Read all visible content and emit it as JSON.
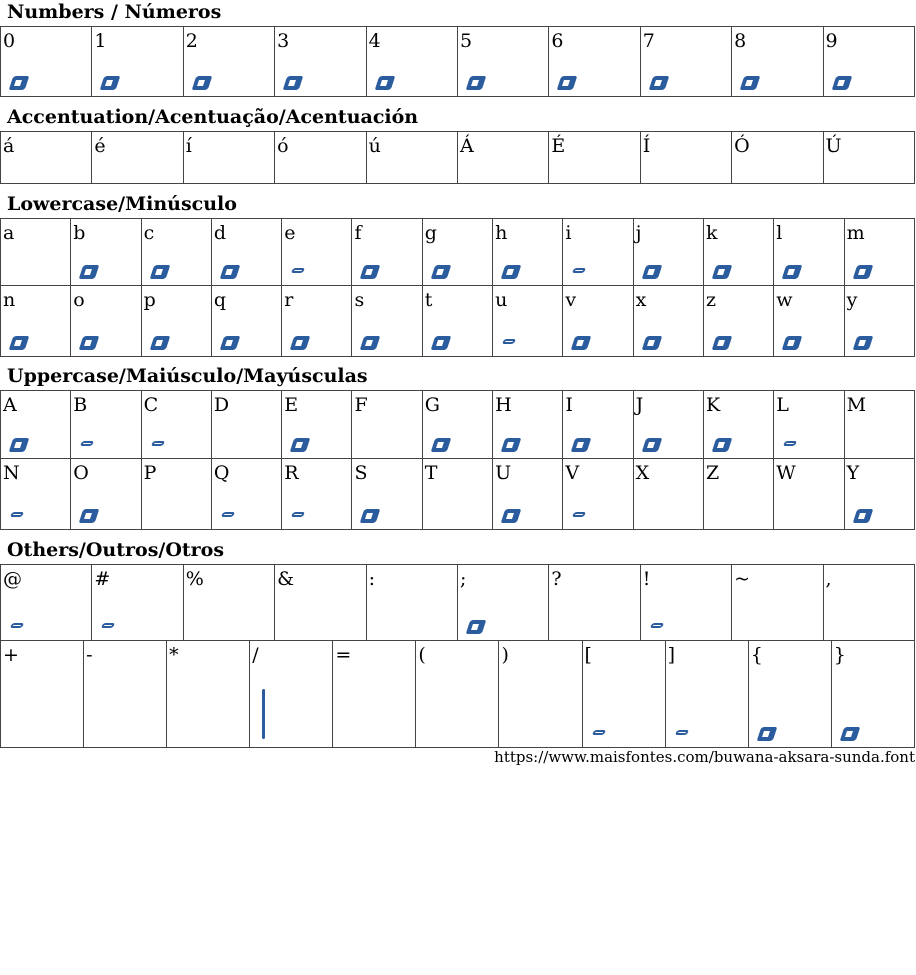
{
  "accent_color": "#2b5c9e",
  "sections": [
    {
      "title": "Numbers / Números",
      "rows": [
        [
          {
            "c": "0",
            "g": "big"
          },
          {
            "c": "1",
            "g": "big"
          },
          {
            "c": "2",
            "g": "big"
          },
          {
            "c": "3",
            "g": "big"
          },
          {
            "c": "4",
            "g": "big"
          },
          {
            "c": "5",
            "g": "big"
          },
          {
            "c": "6",
            "g": "big"
          },
          {
            "c": "7",
            "g": "big"
          },
          {
            "c": "8",
            "g": "big"
          },
          {
            "c": "9",
            "g": "big"
          }
        ]
      ]
    },
    {
      "title": "Accentuation/Acentuação/Acentuación",
      "rows": [
        [
          {
            "c": "á",
            "g": "none"
          },
          {
            "c": "é",
            "g": "none"
          },
          {
            "c": "í",
            "g": "none"
          },
          {
            "c": "ó",
            "g": "none"
          },
          {
            "c": "ú",
            "g": "none"
          },
          {
            "c": "Á",
            "g": "none"
          },
          {
            "c": "É",
            "g": "none"
          },
          {
            "c": "Í",
            "g": "none"
          },
          {
            "c": "Ó",
            "g": "none"
          },
          {
            "c": "Ú",
            "g": "none"
          }
        ]
      ]
    },
    {
      "title": "Lowercase/Minúsculo",
      "rows": [
        [
          {
            "c": "a",
            "g": "none"
          },
          {
            "c": "b",
            "g": "big"
          },
          {
            "c": "c",
            "g": "big"
          },
          {
            "c": "d",
            "g": "big"
          },
          {
            "c": "e",
            "g": "small"
          },
          {
            "c": "f",
            "g": "big"
          },
          {
            "c": "g",
            "g": "big"
          },
          {
            "c": "h",
            "g": "big"
          },
          {
            "c": "i",
            "g": "small"
          },
          {
            "c": "j",
            "g": "big"
          },
          {
            "c": "k",
            "g": "big"
          },
          {
            "c": "l",
            "g": "big"
          },
          {
            "c": "m",
            "g": "big"
          }
        ],
        [
          {
            "c": "n",
            "g": "big"
          },
          {
            "c": "o",
            "g": "big"
          },
          {
            "c": "p",
            "g": "big"
          },
          {
            "c": "q",
            "g": "big"
          },
          {
            "c": "r",
            "g": "big"
          },
          {
            "c": "s",
            "g": "big"
          },
          {
            "c": "t",
            "g": "big"
          },
          {
            "c": "u",
            "g": "small"
          },
          {
            "c": "v",
            "g": "big"
          },
          {
            "c": "x",
            "g": "big"
          },
          {
            "c": "z",
            "g": "big"
          },
          {
            "c": "w",
            "g": "big"
          },
          {
            "c": "y",
            "g": "big"
          }
        ]
      ]
    },
    {
      "title": "Uppercase/Maiúsculo/Mayúsculas",
      "rows": [
        [
          {
            "c": "A",
            "g": "big"
          },
          {
            "c": "B",
            "g": "small"
          },
          {
            "c": "C",
            "g": "small"
          },
          {
            "c": "D",
            "g": "none"
          },
          {
            "c": "E",
            "g": "big"
          },
          {
            "c": "F",
            "g": "none"
          },
          {
            "c": "G",
            "g": "big"
          },
          {
            "c": "H",
            "g": "big"
          },
          {
            "c": "I",
            "g": "big"
          },
          {
            "c": "J",
            "g": "big"
          },
          {
            "c": "K",
            "g": "big"
          },
          {
            "c": "L",
            "g": "small"
          },
          {
            "c": "M",
            "g": "none"
          }
        ],
        [
          {
            "c": "N",
            "g": "small"
          },
          {
            "c": "O",
            "g": "big"
          },
          {
            "c": "P",
            "g": "none"
          },
          {
            "c": "Q",
            "g": "small"
          },
          {
            "c": "R",
            "g": "small"
          },
          {
            "c": "S",
            "g": "big"
          },
          {
            "c": "T",
            "g": "none"
          },
          {
            "c": "U",
            "g": "big"
          },
          {
            "c": "V",
            "g": "small"
          },
          {
            "c": "X",
            "g": "none"
          },
          {
            "c": "Z",
            "g": "none"
          },
          {
            "c": "W",
            "g": "none"
          },
          {
            "c": "Y",
            "g": "big"
          }
        ]
      ]
    },
    {
      "title": "Others/Outros/Otros",
      "rows": [
        [
          {
            "c": "@",
            "g": "small"
          },
          {
            "c": "#",
            "g": "small"
          },
          {
            "c": "%",
            "g": "none"
          },
          {
            "c": "&",
            "g": "none"
          },
          {
            "c": ":",
            "g": "none"
          },
          {
            "c": ";",
            "g": "big"
          },
          {
            "c": "?",
            "g": "none"
          },
          {
            "c": "!",
            "g": "small"
          },
          {
            "c": "~",
            "g": "none"
          },
          {
            "c": ",",
            "g": "none"
          }
        ],
        [
          {
            "c": "+",
            "g": "none"
          },
          {
            "c": "-",
            "g": "none"
          },
          {
            "c": "*",
            "g": "none"
          },
          {
            "c": "/",
            "g": "line"
          },
          {
            "c": "=",
            "g": "none"
          },
          {
            "c": "(",
            "g": "none"
          },
          {
            "c": ")",
            "g": "none"
          },
          {
            "c": "[",
            "g": "small"
          },
          {
            "c": "]",
            "g": "small"
          },
          {
            "c": "{",
            "g": "big"
          },
          {
            "c": "}",
            "g": "big"
          }
        ]
      ]
    }
  ],
  "footer_link": "https://www.maisfontes.com/buwana-aksara-sunda.font"
}
